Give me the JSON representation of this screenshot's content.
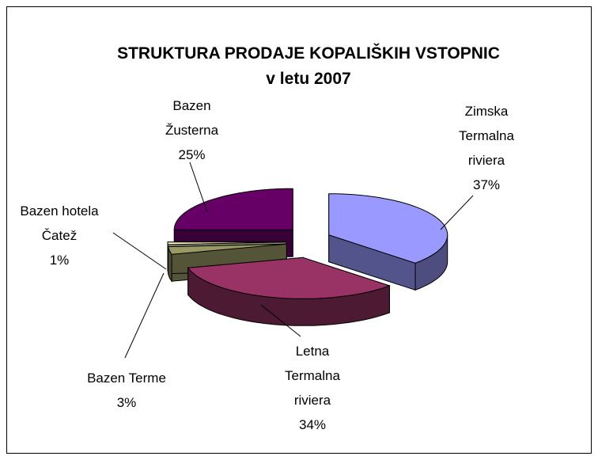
{
  "chart_data": {
    "type": "pie3d",
    "title": "STRUKTURA PRODAJE KOPALIŠKIH VSTOPNIC v letu 2007",
    "categories": [
      "Zimska Termalna riviera",
      "Letna Termalna riviera",
      "Bazen Terme",
      "Bazen hotela Čatež",
      "Bazen Žusterna"
    ],
    "values": [
      37,
      34,
      3,
      1,
      25
    ],
    "value_labels": [
      "37%",
      "34%",
      "3%",
      "1%",
      "25%"
    ],
    "colors": [
      "#9999ff",
      "#993366",
      "#999966",
      "#ffffcc",
      "#660066"
    ]
  }
}
